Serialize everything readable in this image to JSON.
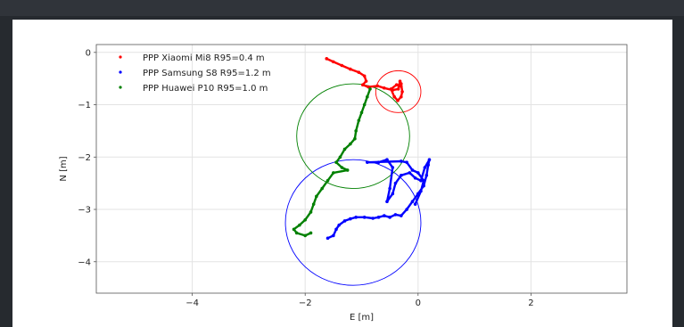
{
  "chart_data": {
    "type": "scatter",
    "xlabel": "E [m]",
    "ylabel": "N [m]",
    "xlim": [
      -5.7,
      3.7
    ],
    "ylim": [
      -4.6,
      0.15
    ],
    "x_ticks": [
      -4,
      -2,
      0,
      2
    ],
    "y_ticks": [
      0,
      -1,
      -2,
      -3,
      -4
    ],
    "grid": true,
    "legend_position": "top-left",
    "series": [
      {
        "name": "PPP Xiaomi Mi8 R95=0.4 m",
        "color": "#ff0000",
        "circle": {
          "center": [
            -0.35,
            -0.75
          ],
          "radius": 0.4
        },
        "points": [
          [
            -1.62,
            -0.12
          ],
          [
            -1.5,
            -0.18
          ],
          [
            -1.35,
            -0.25
          ],
          [
            -1.2,
            -0.32
          ],
          [
            -1.05,
            -0.38
          ],
          [
            -0.95,
            -0.45
          ],
          [
            -0.92,
            -0.55
          ],
          [
            -0.98,
            -0.62
          ],
          [
            -0.88,
            -0.66
          ],
          [
            -0.72,
            -0.64
          ],
          [
            -0.6,
            -0.68
          ],
          [
            -0.45,
            -0.72
          ],
          [
            -0.35,
            -0.7
          ],
          [
            -0.32,
            -0.55
          ],
          [
            -0.3,
            -0.6
          ],
          [
            -0.28,
            -0.75
          ],
          [
            -0.3,
            -0.85
          ],
          [
            -0.36,
            -0.92
          ],
          [
            -0.42,
            -0.85
          ],
          [
            -0.48,
            -0.7
          ],
          [
            -0.38,
            -0.62
          ],
          [
            -0.3,
            -0.65
          ]
        ]
      },
      {
        "name": "PPP Samsung S8 R95=1.2 m",
        "color": "#0000ff",
        "circle": {
          "center": [
            -1.15,
            -3.25
          ],
          "radius": 1.2
        },
        "points": [
          [
            -1.6,
            -3.55
          ],
          [
            -1.5,
            -3.5
          ],
          [
            -1.45,
            -3.38
          ],
          [
            -1.4,
            -3.3
          ],
          [
            -1.3,
            -3.22
          ],
          [
            -1.2,
            -3.18
          ],
          [
            -1.1,
            -3.15
          ],
          [
            -0.95,
            -3.15
          ],
          [
            -0.8,
            -3.17
          ],
          [
            -0.7,
            -3.15
          ],
          [
            -0.6,
            -3.12
          ],
          [
            -0.5,
            -3.15
          ],
          [
            -0.4,
            -3.1
          ],
          [
            -0.3,
            -3.12
          ],
          [
            -0.2,
            -3.0
          ],
          [
            -0.1,
            -2.85
          ],
          [
            0.0,
            -2.7
          ],
          [
            0.1,
            -2.55
          ],
          [
            0.15,
            -2.35
          ],
          [
            0.18,
            -2.15
          ],
          [
            0.2,
            -2.05
          ],
          [
            0.12,
            -2.2
          ],
          [
            0.05,
            -2.45
          ],
          [
            -0.05,
            -2.4
          ],
          [
            -0.15,
            -2.3
          ],
          [
            -0.3,
            -2.35
          ],
          [
            -0.4,
            -2.5
          ],
          [
            -0.45,
            -2.7
          ],
          [
            -0.55,
            -2.85
          ],
          [
            -0.5,
            -2.6
          ],
          [
            -0.45,
            -2.2
          ],
          [
            -0.55,
            -2.05
          ],
          [
            -0.7,
            -2.1
          ],
          [
            -0.9,
            -2.1
          ],
          [
            -0.3,
            -2.08
          ],
          [
            -0.2,
            -2.1
          ],
          [
            -0.1,
            -2.25
          ],
          [
            0.0,
            -2.3
          ],
          [
            0.1,
            -2.45
          ],
          [
            0.05,
            -2.65
          ],
          [
            -0.05,
            -2.9
          ]
        ]
      },
      {
        "name": "PPP Huawei P10 R95=1.0 m",
        "color": "#008000",
        "circle": {
          "center": [
            -1.15,
            -1.6
          ],
          "radius": 1.0
        },
        "points": [
          [
            -0.85,
            -0.7
          ],
          [
            -0.9,
            -0.85
          ],
          [
            -0.95,
            -1.0
          ],
          [
            -1.0,
            -1.15
          ],
          [
            -1.05,
            -1.3
          ],
          [
            -1.1,
            -1.5
          ],
          [
            -1.12,
            -1.65
          ],
          [
            -1.2,
            -1.75
          ],
          [
            -1.3,
            -1.85
          ],
          [
            -1.38,
            -2.0
          ],
          [
            -1.45,
            -2.1
          ],
          [
            -1.35,
            -2.2
          ],
          [
            -1.25,
            -2.25
          ],
          [
            -1.5,
            -2.3
          ],
          [
            -1.6,
            -2.45
          ],
          [
            -1.7,
            -2.6
          ],
          [
            -1.8,
            -2.75
          ],
          [
            -1.85,
            -2.9
          ],
          [
            -1.9,
            -3.05
          ],
          [
            -2.0,
            -3.2
          ],
          [
            -2.1,
            -3.3
          ],
          [
            -2.2,
            -3.38
          ],
          [
            -2.15,
            -3.45
          ],
          [
            -2.0,
            -3.5
          ],
          [
            -1.9,
            -3.45
          ]
        ]
      }
    ]
  }
}
